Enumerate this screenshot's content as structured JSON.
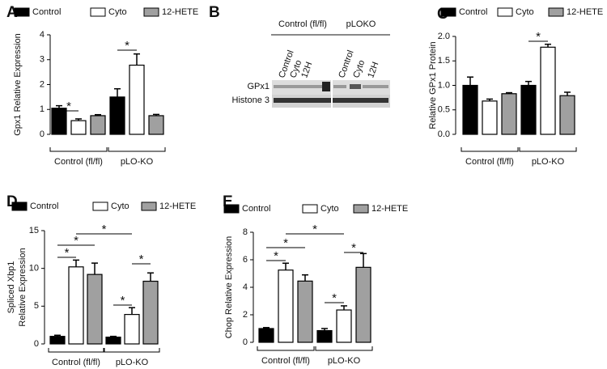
{
  "chart_data": [
    {
      "type": "bar",
      "panel_label": "A",
      "ylabel": [
        "Gpx1 Relative Expression"
      ],
      "categories": [
        "Control (fl/fl)",
        "pLO-KO"
      ],
      "series": [
        {
          "name": "Control",
          "color": "#000000",
          "values": [
            1.05,
            1.5
          ],
          "errors": [
            0.1,
            0.33
          ]
        },
        {
          "name": "Cyto",
          "color": "#ffffff",
          "values": [
            0.55,
            2.78
          ],
          "errors": [
            0.07,
            0.45
          ]
        },
        {
          "name": "12-HETE",
          "color": "#a0a0a0",
          "values": [
            0.75,
            0.75
          ],
          "errors": [
            0.04,
            0.05
          ]
        }
      ],
      "ylim": [
        0,
        4
      ],
      "yticks": [
        0,
        1,
        2,
        3,
        4
      ],
      "annotations": [
        "*",
        "*"
      ]
    },
    {
      "type": "bar",
      "panel_label": "C",
      "ylabel": [
        "Relative GPx1 Protein"
      ],
      "categories": [
        "Control (fl/fl)",
        "pLO-KO"
      ],
      "series": [
        {
          "name": "Control",
          "color": "#000000",
          "values": [
            1.0,
            1.0
          ],
          "errors": [
            0.17,
            0.08
          ]
        },
        {
          "name": "Cyto",
          "color": "#ffffff",
          "values": [
            0.68,
            1.78
          ],
          "errors": [
            0.04,
            0.06
          ]
        },
        {
          "name": "12-HETE",
          "color": "#a0a0a0",
          "values": [
            0.83,
            0.79
          ],
          "errors": [
            0.02,
            0.07
          ]
        }
      ],
      "ylim": [
        0,
        2
      ],
      "yticks": [
        {
          "value": 0,
          "label": "0.0"
        },
        {
          "value": 0.5,
          "label": "0.5"
        },
        {
          "value": 1,
          "label": "1.0"
        },
        {
          "value": 1.5,
          "label": "1.5"
        },
        {
          "value": 2,
          "label": "2.0"
        }
      ],
      "annotations": [
        "*"
      ]
    },
    {
      "type": "bar",
      "panel_label": "D",
      "ylabel": [
        "Spliced Xbp1",
        "Relative Expression"
      ],
      "categories": [
        "Control (fl/fl)",
        "pLO-KO"
      ],
      "series": [
        {
          "name": "Control",
          "color": "#000000",
          "values": [
            1.0,
            0.9
          ],
          "errors": [
            0.15,
            0.1
          ]
        },
        {
          "name": "Cyto",
          "color": "#ffffff",
          "values": [
            10.2,
            3.9
          ],
          "errors": [
            0.9,
            0.9
          ]
        },
        {
          "name": "12-HETE",
          "color": "#a0a0a0",
          "values": [
            9.2,
            8.3
          ],
          "errors": [
            1.5,
            1.1
          ]
        }
      ],
      "ylim": [
        0,
        15
      ],
      "yticks": [
        0,
        5,
        10,
        15
      ],
      "annotations": [
        "*",
        "*",
        "*",
        "*",
        "*"
      ]
    },
    {
      "type": "bar",
      "panel_label": "E",
      "ylabel": [
        "Chop Relative Expression"
      ],
      "categories": [
        "Control (fl/fl)",
        "pLO-KO"
      ],
      "series": [
        {
          "name": "Control",
          "color": "#000000",
          "values": [
            1.0,
            0.85
          ],
          "errors": [
            0.07,
            0.15
          ]
        },
        {
          "name": "Cyto",
          "color": "#ffffff",
          "values": [
            5.25,
            2.35
          ],
          "errors": [
            0.5,
            0.3
          ]
        },
        {
          "name": "12-HETE",
          "color": "#a0a0a0",
          "values": [
            4.45,
            5.45
          ],
          "errors": [
            0.45,
            1.0
          ]
        }
      ],
      "ylim": [
        0,
        8
      ],
      "yticks": [
        0,
        2,
        4,
        6,
        8
      ],
      "annotations": [
        "*",
        "*",
        "*",
        "*",
        "*"
      ]
    }
  ],
  "blot": {
    "panel_label": "B",
    "groups": [
      "Control (fl/fl)",
      "pLOKO"
    ],
    "lanes": [
      "Control",
      "Cyto",
      "12H",
      "Control",
      "Cyto",
      "12H"
    ],
    "rows": [
      "GPx1",
      "Histone 3"
    ]
  }
}
